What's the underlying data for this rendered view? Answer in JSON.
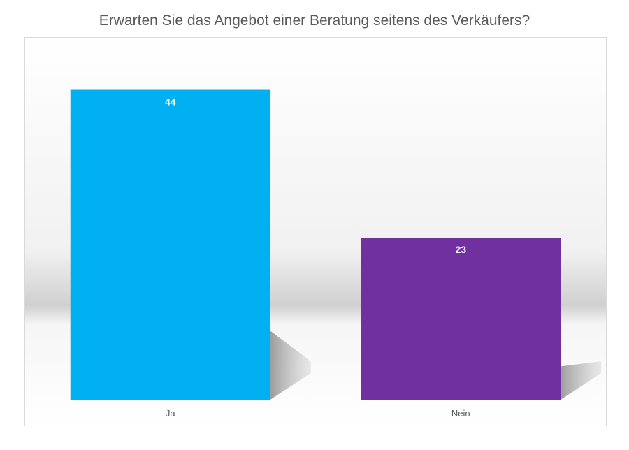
{
  "chart_data": {
    "type": "bar",
    "title": "Erwarten Sie das Angebot einer Beratung seitens des Verkäufers?",
    "categories": [
      "Ja",
      "Nein"
    ],
    "values": [
      44,
      23
    ],
    "colors": [
      "#00b0f0",
      "#7030a0"
    ],
    "data_labels": [
      "44",
      "23"
    ],
    "xlabel": "",
    "ylabel": "",
    "ylim": [
      0,
      48
    ],
    "grid": false,
    "legend": "none"
  }
}
